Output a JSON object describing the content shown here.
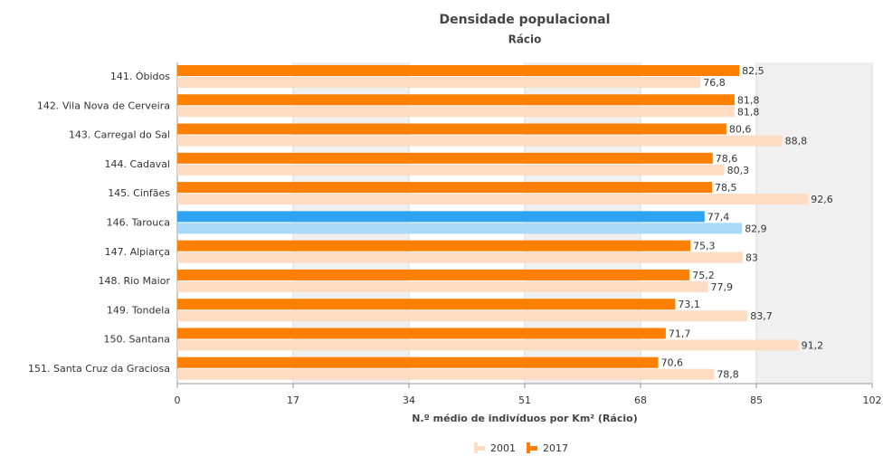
{
  "chart_data": {
    "type": "bar",
    "orientation": "horizontal",
    "title": "Densidade populacional",
    "subtitle": "Rácio",
    "x_label": "N.º médio de indivíduos por Km² (Rácio)",
    "categories": [
      "141. Óbidos",
      "142. Vila Nova de Cerveira",
      "143. Carregal do Sal",
      "144. Cadaval",
      "145. Cinfães",
      "146. Tarouca",
      "147. Alpiarça",
      "148. Rio Maior",
      "149. Tondela",
      "150. Santana",
      "151. Santa Cruz da Graciosa"
    ],
    "series": [
      {
        "name": "2017",
        "color": "#ff7f00",
        "highlight_color": "#2ea3f2",
        "values": [
          82.5,
          81.8,
          80.6,
          78.6,
          78.5,
          77.4,
          75.3,
          75.2,
          73.1,
          71.7,
          70.6
        ],
        "value_labels": [
          "82,5",
          "81,8",
          "80,6",
          "78,6",
          "78,5",
          "77,4",
          "75,3",
          "75,2",
          "73,1",
          "71,7",
          "70,6"
        ]
      },
      {
        "name": "2001",
        "color": "#fddcc3",
        "highlight_color": "#a9d9fa",
        "values": [
          76.8,
          81.8,
          88.8,
          80.3,
          92.6,
          82.9,
          83,
          77.9,
          83.7,
          91.2,
          78.8
        ],
        "value_labels": [
          "76,8",
          "81,8",
          "88,8",
          "80,3",
          "92,6",
          "82,9",
          "83",
          "77,9",
          "83,7",
          "91,2",
          "78,8"
        ]
      }
    ],
    "highlight_index": 5,
    "xlim": [
      0,
      102
    ],
    "xticks": [
      0,
      17,
      34,
      51,
      68,
      85,
      102
    ],
    "band_color": "#f0f0f0",
    "legend": "bottom",
    "legend_order": [
      1,
      0
    ]
  }
}
